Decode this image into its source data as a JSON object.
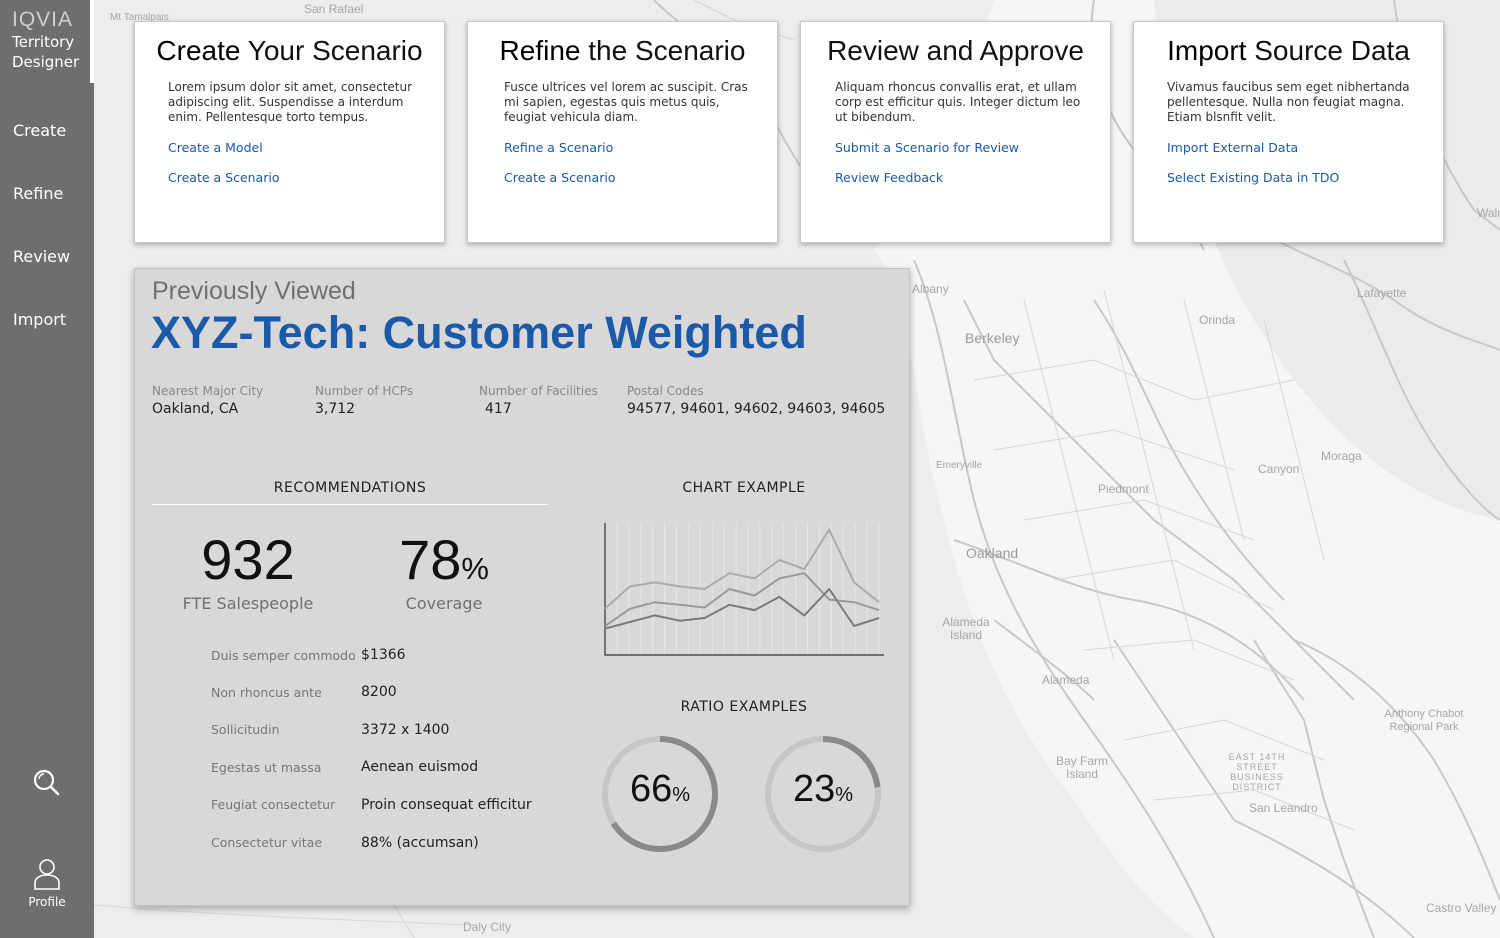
{
  "app": {
    "logo": "IQVIA",
    "name_line1": "Territory",
    "name_line2": "Designer"
  },
  "sidebar": {
    "items": [
      {
        "label": "Create"
      },
      {
        "label": "Refine"
      },
      {
        "label": "Review"
      },
      {
        "label": "Import"
      }
    ],
    "search_icon": "search-icon",
    "profile_label": "Profile"
  },
  "cards": [
    {
      "title_bold": "Create",
      "title_rest": " Your Scenario",
      "text": "Lorem ipsum dolor sit amet, consectetur adipiscing elit. Suspendisse a interdum enim. Pellentesque torto tempus.",
      "links": [
        "Create a Model",
        "Create a Scenario"
      ]
    },
    {
      "title_bold": "Refine",
      "title_rest": " the Scenario",
      "text": "Fusce ultrices vel lorem ac suscipit. Cras mi sapien, egestas quis metus quis, feugiat vehicula diam.",
      "links": [
        "Refine a Scenario",
        "Create a Scenario"
      ]
    },
    {
      "title_bold": "",
      "title_rest": "Review and Approve",
      "text": "Aliquam rhoncus convallis erat, et ullam corp est efficitur quis. Integer dictum leo ut bibendum.",
      "links": [
        "Submit a Scenario for Review",
        "Review Feedback"
      ]
    },
    {
      "title_bold": "Import",
      "title_rest": " Source Data",
      "text": "Vivamus faucibus sem eget nibhertanda pellentesque. Nulla non feugiat magna. Etiam blsnfit velit.",
      "links": [
        "Import External Data",
        "Select Existing Data in TDO"
      ]
    }
  ],
  "panel": {
    "label": "Previously Viewed",
    "title": "XYZ-Tech: Customer Weighted",
    "stats": [
      {
        "label": "Nearest Major City",
        "value": "Oakland, CA"
      },
      {
        "label": "Number of HCPs",
        "value": "3,712"
      },
      {
        "label": "Number of Facilities",
        "value": "417"
      },
      {
        "label": "Postal Codes",
        "value": "94577, 94601, 94602, 94603, 94605"
      }
    ],
    "recommendations_head": "RECOMMENDATIONS",
    "fte_value": "932",
    "fte_caption": "FTE Salespeople",
    "coverage_value": "78",
    "coverage_unit": "%",
    "coverage_caption": "Coverage",
    "rows": [
      {
        "label": "Duis semper commodo",
        "value": "$1366"
      },
      {
        "label": "Non rhoncus ante",
        "value": "8200"
      },
      {
        "label": "Sollicitudin",
        "value": "3372 x 1400"
      },
      {
        "label": "Egestas ut massa",
        "value": "Aenean euismod"
      },
      {
        "label": "Feugiat consectetur",
        "value": "Proin consequat efficitur"
      },
      {
        "label": "Consectetur vitae",
        "value": "88% (accumsan)"
      }
    ],
    "chart_head": "CHART EXAMPLE",
    "ratio_head": "RATIO EXAMPLES",
    "ratios": [
      {
        "value": "66",
        "unit": "%",
        "fraction": 0.66,
        "color": "#8a8a8a"
      },
      {
        "value": "23",
        "unit": "%",
        "fraction": 0.23,
        "color": "#8a8a8a"
      }
    ]
  },
  "chart_data": {
    "type": "line",
    "title": "CHART EXAMPLE",
    "xlabel": "",
    "ylabel": "",
    "x": [
      1,
      2,
      3,
      4,
      5,
      6,
      7,
      8,
      9,
      10,
      11,
      12
    ],
    "ylim": [
      0,
      100
    ],
    "grid": true,
    "series": [
      {
        "values": [
          22,
          35,
          40,
          38,
          36,
          50,
          45,
          58,
          62,
          42,
          40,
          34
        ],
        "color": "#999999"
      },
      {
        "values": [
          35,
          52,
          55,
          52,
          50,
          62,
          58,
          72,
          65,
          95,
          55,
          40
        ],
        "color": "#ababab"
      },
      {
        "values": [
          20,
          25,
          30,
          26,
          28,
          38,
          34,
          44,
          30,
          50,
          22,
          28
        ],
        "color": "#7a7a7a"
      }
    ]
  },
  "map": {
    "labels": [
      {
        "text": "San Rafael"
      },
      {
        "text": "Mt Tamalpais"
      },
      {
        "text": "Berkeley"
      },
      {
        "text": "Albany"
      },
      {
        "text": "Lafayette"
      },
      {
        "text": "Orinda"
      },
      {
        "text": "Moraga"
      },
      {
        "text": "Canyon"
      },
      {
        "text": "Piedmont"
      },
      {
        "text": "Emeryville"
      },
      {
        "text": "Oakland"
      },
      {
        "text": "Alameda Island"
      },
      {
        "text": "Alameda"
      },
      {
        "text": "Anthony Chabot Regional Park"
      },
      {
        "text": "Bay Farm Island"
      },
      {
        "text": "EAST 14TH STREET BUSINESS DISTRICT"
      },
      {
        "text": "San Leandro"
      },
      {
        "text": "Castro Valley"
      },
      {
        "text": "Daly City"
      },
      {
        "text": "Walnut"
      }
    ]
  }
}
